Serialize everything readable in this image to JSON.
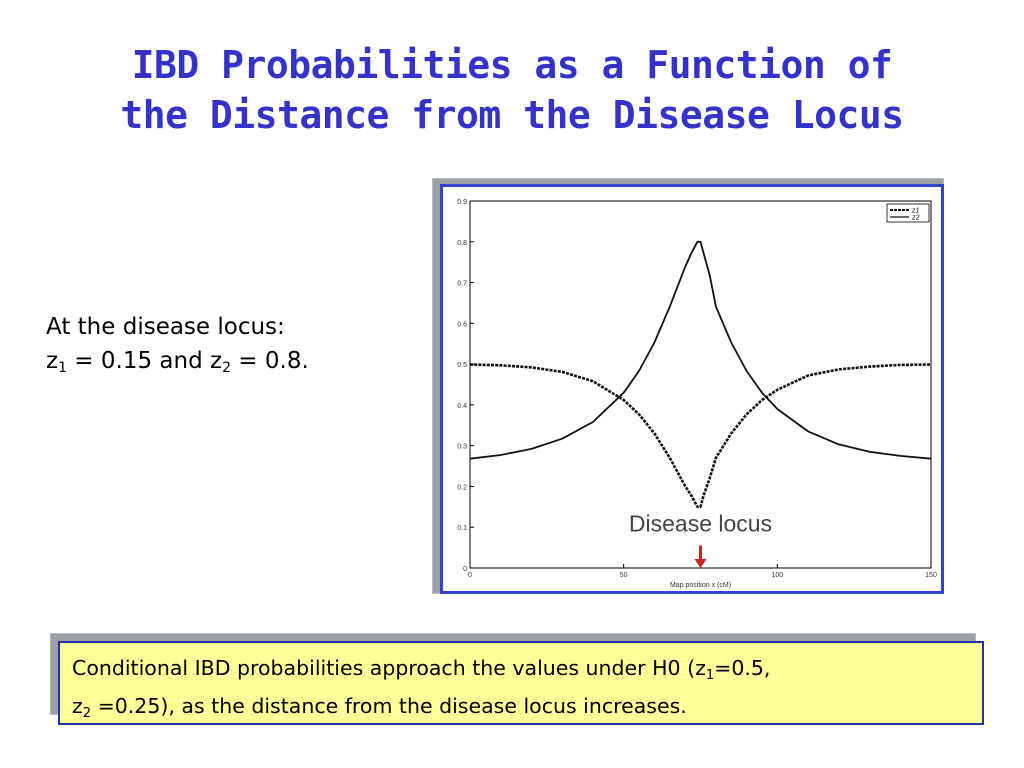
{
  "title": {
    "line1": "IBD Probabilities as a Function of",
    "line2": "the Distance from the Disease Locus"
  },
  "note": {
    "line1": "At the disease locus:",
    "z1_label": "z",
    "z1_sub": "1",
    "z1_text": " = 0.15 and z",
    "z2_sub": "2",
    "z2_text": " = 0.8."
  },
  "callout": {
    "part1": "Conditional IBD probabilities approach the values under H0 (z",
    "sub1": "1",
    "part2": "=0.5,",
    "part3": "z",
    "sub2": "2",
    "part4": " =0.25), as the distance from the disease locus increases."
  },
  "colors": {
    "title": "#3333cc",
    "frame_border": "#3344cc",
    "callout_bg": "#ffff99",
    "arrow": "#cc2222"
  },
  "chart_data": {
    "type": "line",
    "xlabel": "Map position x (cM)",
    "ylabel": "",
    "xlim": [
      0,
      150
    ],
    "ylim": [
      0,
      0.9
    ],
    "xticks": [
      0,
      50,
      100,
      150
    ],
    "xtick_labels": [
      "0",
      "50",
      "100",
      "150"
    ],
    "yticks": [
      0,
      0.1,
      0.2,
      0.3,
      0.4,
      0.5,
      0.6,
      0.7,
      0.8,
      0.9
    ],
    "ytick_labels": [
      "0",
      "0.1",
      "0.2",
      "0.3",
      "0.4",
      "0.5",
      "0.6",
      "0.7",
      "0.8",
      "0.9"
    ],
    "grid": false,
    "legend": "top-right",
    "annotation": {
      "text": "Disease locus",
      "x": 75
    },
    "series": [
      {
        "name": "z1",
        "style": "dashed",
        "x": [
          0,
          10,
          20,
          30,
          40,
          50,
          55,
          60,
          65,
          70,
          72,
          74,
          75,
          76,
          78,
          80,
          85,
          90,
          95,
          100,
          110,
          120,
          130,
          140,
          150
        ],
        "y": [
          0.499,
          0.497,
          0.492,
          0.481,
          0.458,
          0.412,
          0.377,
          0.33,
          0.27,
          0.201,
          0.178,
          0.15,
          0.15,
          0.178,
          0.22,
          0.27,
          0.33,
          0.377,
          0.412,
          0.437,
          0.472,
          0.487,
          0.494,
          0.498,
          0.499
        ]
      },
      {
        "name": "z2",
        "style": "solid",
        "x": [
          0,
          10,
          20,
          30,
          40,
          50,
          55,
          60,
          65,
          70,
          72,
          74,
          75,
          76,
          78,
          80,
          85,
          90,
          95,
          100,
          110,
          120,
          130,
          140,
          150
        ],
        "y": [
          0.268,
          0.277,
          0.292,
          0.317,
          0.358,
          0.43,
          0.483,
          0.553,
          0.641,
          0.738,
          0.772,
          0.8,
          0.8,
          0.772,
          0.718,
          0.641,
          0.553,
          0.483,
          0.43,
          0.39,
          0.335,
          0.303,
          0.285,
          0.275,
          0.268
        ]
      }
    ]
  }
}
